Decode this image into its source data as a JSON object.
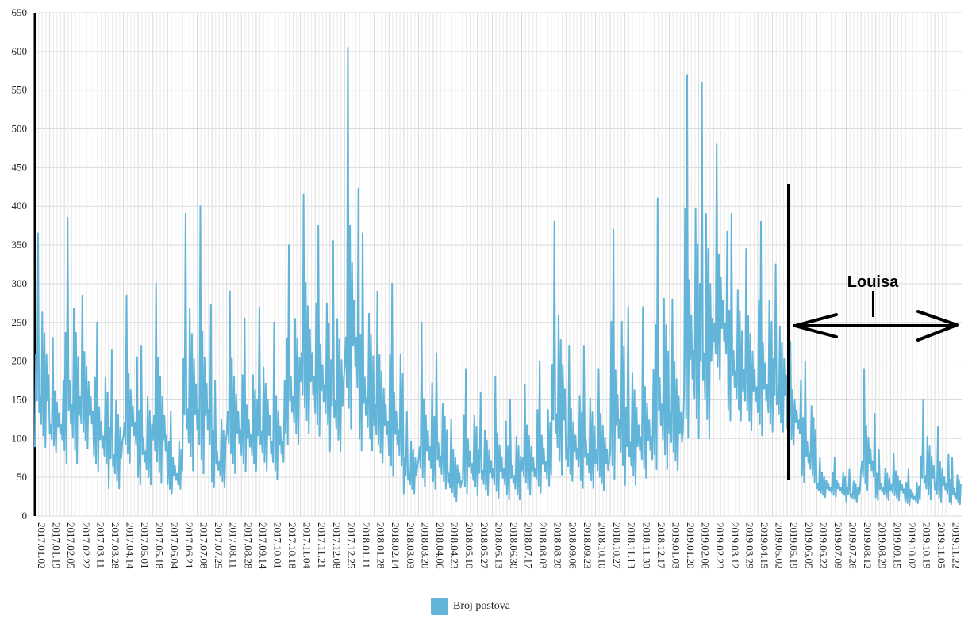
{
  "chart_data": {
    "type": "line",
    "title": "",
    "xlabel": "",
    "ylabel": "",
    "ylim": [
      0,
      650
    ],
    "yticks": [
      0,
      50,
      100,
      150,
      200,
      250,
      300,
      350,
      400,
      450,
      500,
      550,
      600,
      650
    ],
    "grid": true,
    "legend_position": "bottom-center",
    "x_start": "2017.01.02",
    "x_end": "2019.12.06",
    "x_tick_labels": [
      "2017.01.02",
      "2017.01.19",
      "2017.02.05",
      "2017.02.22",
      "2017.03.11",
      "2017.03.28",
      "2017.04.14",
      "2017.05.01",
      "2017.05.18",
      "2017.06.04",
      "2017.06.21",
      "2017.07.08",
      "2017.07.25",
      "2017.08.11",
      "2017.08.28",
      "2017.09.14",
      "2017.10.01",
      "2017.10.18",
      "2017.11.04",
      "2017.11.21",
      "2017.12.08",
      "2017.12.25",
      "2018.01.11",
      "2018.01.28",
      "2018.02.14",
      "2018.03.03",
      "2018.03.20",
      "2018.04.06",
      "2018.04.23",
      "2018.05.10",
      "2018.05.27",
      "2018.06.13",
      "2018.06.30",
      "2018.07.17",
      "2018.08.03",
      "2018.08.20",
      "2018.09.06",
      "2018.09.23",
      "2018.10.10",
      "2018.10.27",
      "2018.11.13",
      "2018.11.30",
      "2018.12.17",
      "2019.01.03",
      "2019.01.20",
      "2019.02.06",
      "2019.02.23",
      "2019.03.12",
      "2019.03.29",
      "2019.04.15",
      "2019.05.02",
      "2019.05.19",
      "2019.06.05",
      "2019.06.22",
      "2019.07.09",
      "2019.07.26",
      "2019.08.12",
      "2019.08.29",
      "2019.09.15",
      "2019.10.02",
      "2019.10.19",
      "2019.11.05",
      "2019.11.22"
    ],
    "series": [
      {
        "name": "Broj postova",
        "color": "#62b5d9",
        "sampling": "weekly peak values, dates in x",
        "x": [
          "2017.01.02",
          "2017.01.19",
          "2017.02.05",
          "2017.02.22",
          "2017.03.11",
          "2017.03.28",
          "2017.04.14",
          "2017.05.01",
          "2017.05.18",
          "2017.06.04",
          "2017.06.21",
          "2017.07.08",
          "2017.07.25",
          "2017.08.11",
          "2017.08.28",
          "2017.09.14",
          "2017.10.01",
          "2017.10.18",
          "2017.11.04",
          "2017.11.21",
          "2017.12.08",
          "2017.12.25",
          "2018.01.11",
          "2018.01.28",
          "2018.02.14",
          "2018.03.03",
          "2018.03.20",
          "2018.04.06",
          "2018.04.23",
          "2018.05.10",
          "2018.05.27",
          "2018.06.13",
          "2018.06.30",
          "2018.07.17",
          "2018.08.03",
          "2018.08.20",
          "2018.09.06",
          "2018.09.23",
          "2018.10.10",
          "2018.10.27",
          "2018.11.13",
          "2018.11.30",
          "2018.12.17",
          "2019.01.03",
          "2019.01.20",
          "2019.02.06",
          "2019.02.23",
          "2019.03.12",
          "2019.03.29",
          "2019.04.15",
          "2019.05.02",
          "2019.05.19",
          "2019.06.05",
          "2019.06.22",
          "2019.07.09",
          "2019.07.26",
          "2019.08.12",
          "2019.08.29",
          "2019.09.15",
          "2019.10.02",
          "2019.10.19",
          "2019.11.05",
          "2019.11.22"
        ],
        "y_high": [
          365,
          230,
          385,
          285,
          250,
          215,
          285,
          220,
          300,
          135,
          390,
          400,
          175,
          290,
          255,
          270,
          250,
          350,
          415,
          375,
          355,
          605,
          365,
          290,
          300,
          135,
          250,
          210,
          125,
          190,
          160,
          180,
          150,
          170,
          200,
          380,
          220,
          220,
          190,
          370,
          270,
          270,
          410,
          280,
          570,
          560,
          480,
          390,
          345,
          380,
          325,
          225,
          200,
          75,
          75,
          60,
          190,
          85,
          80,
          60,
          150,
          115,
          75
        ],
        "y_low": [
          65,
          70,
          40,
          70,
          40,
          20,
          50,
          25,
          20,
          20,
          30,
          25,
          25,
          35,
          40,
          40,
          30,
          70,
          80,
          80,
          60,
          70,
          60,
          50,
          30,
          20,
          20,
          20,
          10,
          15,
          15,
          10,
          10,
          15,
          15,
          25,
          30,
          20,
          20,
          20,
          20,
          30,
          30,
          40,
          60,
          60,
          150,
          100,
          90,
          80,
          90,
          80,
          30,
          20,
          20,
          15,
          20,
          15,
          15,
          10,
          10,
          10,
          10
        ]
      }
    ],
    "annotation": {
      "label": "Louisa",
      "start_date": "2019.05.26",
      "direction": "right",
      "arrow_level": 245
    }
  },
  "legend": {
    "label": "Broj postova",
    "color": "#62b5d9"
  }
}
